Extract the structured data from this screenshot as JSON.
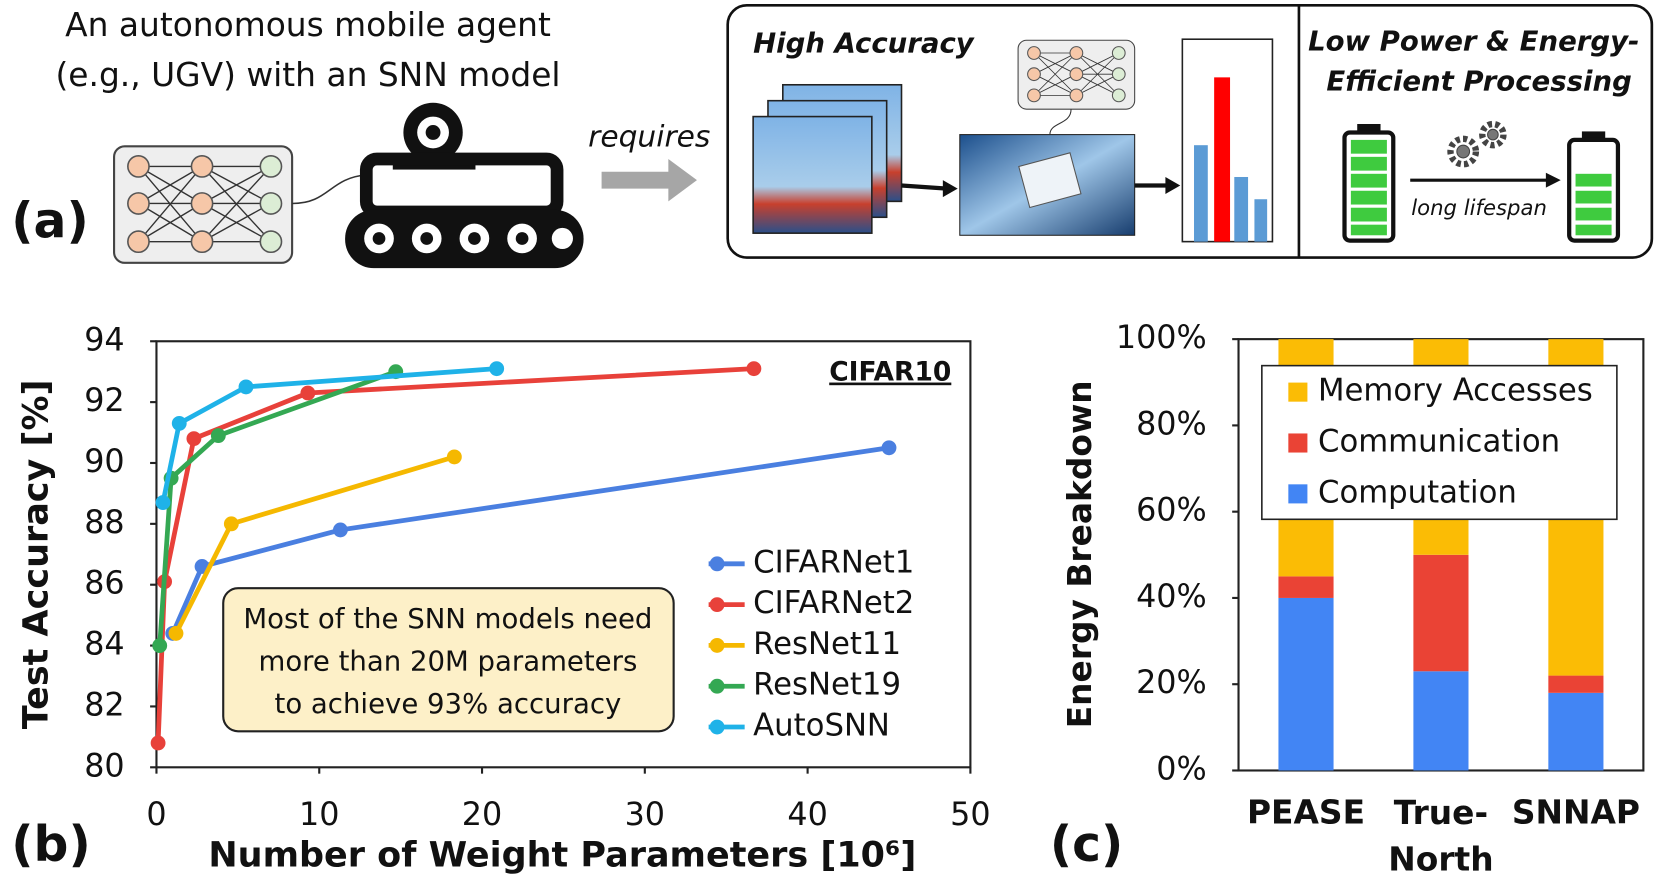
{
  "panel_a": {
    "label": "(a)",
    "agent_text": [
      "An autonomous mobile agent",
      "(e.g., UGV) with an SNN model"
    ],
    "arrow_text": "requires",
    "accuracy_title": "High Accuracy",
    "power_title": [
      "Low Power & Energy-",
      "Efficient Processing"
    ],
    "lifespan_text": "long lifespan"
  },
  "chart_data": [
    {
      "type": "line",
      "panel_label": "(b)",
      "title": "CIFAR10",
      "x_label": "Number of Weight Parameters [10⁶]",
      "y_label": "Test Accuracy [%]",
      "xlim": [
        0,
        50
      ],
      "xticks": [
        0,
        10,
        20,
        30,
        40,
        50
      ],
      "ylim": [
        80,
        94
      ],
      "yticks": [
        80,
        82,
        84,
        86,
        88,
        90,
        92,
        94
      ],
      "legend": "lower right",
      "annotation": [
        "Most of the SNN models need",
        "more than 20M parameters",
        "to achieve 93% accuracy"
      ],
      "series": [
        {
          "name": "CIFARNet1",
          "color": "#4a7fe0",
          "x": [
            1,
            2.8,
            11.3,
            45
          ],
          "values": [
            84.4,
            86.6,
            87.8,
            90.5
          ]
        },
        {
          "name": "CIFARNet2",
          "color": "#e8413a",
          "x": [
            0.1,
            0.5,
            2.3,
            9.3,
            36.7
          ],
          "values": [
            80.8,
            86.1,
            90.8,
            92.3,
            93.1
          ]
        },
        {
          "name": "ResNet11",
          "color": "#f5b800",
          "x": [
            1.2,
            4.6,
            18.3
          ],
          "values": [
            84.4,
            88.0,
            90.2
          ]
        },
        {
          "name": "ResNet19",
          "color": "#34a853",
          "x": [
            0.2,
            0.9,
            3.8,
            14.7
          ],
          "values": [
            84.0,
            89.5,
            90.9,
            93.0
          ]
        },
        {
          "name": "AutoSNN",
          "color": "#1fb2e8",
          "x": [
            0.4,
            1.4,
            5.5,
            20.9
          ],
          "values": [
            88.7,
            91.3,
            92.5,
            93.1
          ]
        }
      ]
    },
    {
      "type": "stacked_bar",
      "panel_label": "(c)",
      "y_label": "Energy Breakdown",
      "categories": [
        "PEASE",
        "True-North",
        "SNNAP"
      ],
      "ylim": [
        0,
        100
      ],
      "yticks": [
        {
          "value": 0,
          "label": "0%"
        },
        {
          "value": 20,
          "label": "20%"
        },
        {
          "value": 40,
          "label": "40%"
        },
        {
          "value": 60,
          "label": "60%"
        },
        {
          "value": 80,
          "label": "80%"
        },
        {
          "value": 100,
          "label": "100%"
        }
      ],
      "legend": "upper center",
      "series": [
        {
          "name": "Memory Accesses",
          "color": "#fbbc05",
          "values": [
            55,
            50,
            78
          ]
        },
        {
          "name": "Communication",
          "color": "#ea4335",
          "values": [
            5,
            27,
            4
          ]
        },
        {
          "name": "Computation",
          "color": "#4285f4",
          "values": [
            40,
            23,
            18
          ]
        }
      ]
    }
  ]
}
